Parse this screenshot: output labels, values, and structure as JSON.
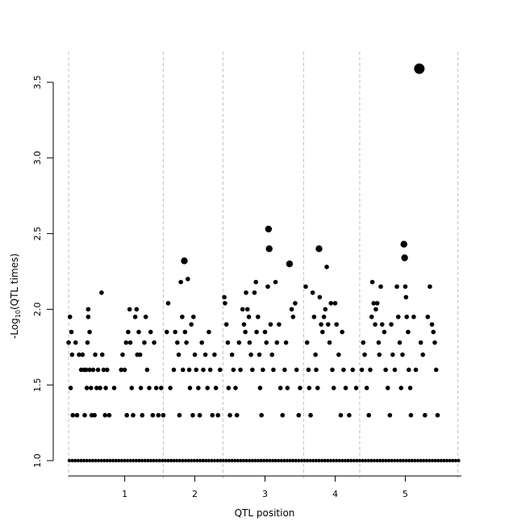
{
  "chart_data": {
    "type": "scatter",
    "title": "",
    "xlabel": "QTL position",
    "ylabel": "-Log10(QTL times)",
    "ylabel_parts": {
      "prefix": "-Log",
      "subscript": "10",
      "suffix": "(QTL times)"
    },
    "x_ticks": [
      {
        "label": "1",
        "value": 1
      },
      {
        "label": "2",
        "value": 2
      },
      {
        "label": "3",
        "value": 3
      },
      {
        "label": "4",
        "value": 4
      },
      {
        "label": "5",
        "value": 5
      }
    ],
    "y_ticks": [
      "1.0",
      "1.5",
      "2.0",
      "2.5",
      "3.0",
      "3.5"
    ],
    "ylim": [
      1.0,
      3.5
    ],
    "xlim": [
      0.2,
      5.8
    ],
    "chromosome_boundaries": [
      0.2,
      1.55,
      2.4,
      3.55,
      4.35,
      5.75
    ],
    "grid": false,
    "legend": "none",
    "point_color": "#000000",
    "baseline_points_y": 1.0,
    "points": [
      {
        "x": 0.2,
        "y": 1.78
      },
      {
        "x": 0.22,
        "y": 1.95
      },
      {
        "x": 0.24,
        "y": 1.85
      },
      {
        "x": 0.25,
        "y": 1.7
      },
      {
        "x": 0.23,
        "y": 1.48
      },
      {
        "x": 0.26,
        "y": 1.3
      },
      {
        "x": 0.3,
        "y": 1.78
      },
      {
        "x": 0.32,
        "y": 1.3
      },
      {
        "x": 0.35,
        "y": 1.7
      },
      {
        "x": 0.38,
        "y": 1.6
      },
      {
        "x": 0.4,
        "y": 1.7
      },
      {
        "x": 0.42,
        "y": 1.6
      },
      {
        "x": 0.43,
        "y": 1.3
      },
      {
        "x": 0.45,
        "y": 1.6
      },
      {
        "x": 0.46,
        "y": 1.48
      },
      {
        "x": 0.47,
        "y": 1.78
      },
      {
        "x": 0.48,
        "y": 2.0
      },
      {
        "x": 0.48,
        "y": 1.95
      },
      {
        "x": 0.5,
        "y": 1.85
      },
      {
        "x": 0.5,
        "y": 1.6
      },
      {
        "x": 0.52,
        "y": 1.48
      },
      {
        "x": 0.53,
        "y": 1.3
      },
      {
        "x": 0.55,
        "y": 1.6
      },
      {
        "x": 0.57,
        "y": 1.3
      },
      {
        "x": 0.58,
        "y": 1.7
      },
      {
        "x": 0.6,
        "y": 1.48
      },
      {
        "x": 0.62,
        "y": 1.6
      },
      {
        "x": 0.65,
        "y": 1.48
      },
      {
        "x": 0.67,
        "y": 2.11
      },
      {
        "x": 0.68,
        "y": 1.7
      },
      {
        "x": 0.7,
        "y": 1.6
      },
      {
        "x": 0.72,
        "y": 1.3
      },
      {
        "x": 0.73,
        "y": 1.48
      },
      {
        "x": 0.75,
        "y": 1.6
      },
      {
        "x": 0.78,
        "y": 1.3
      },
      {
        "x": 0.85,
        "y": 1.48
      },
      {
        "x": 0.95,
        "y": 1.6
      },
      {
        "x": 0.97,
        "y": 1.7
      },
      {
        "x": 1.0,
        "y": 1.6
      },
      {
        "x": 1.02,
        "y": 1.78
      },
      {
        "x": 1.03,
        "y": 1.3
      },
      {
        "x": 1.05,
        "y": 1.85
      },
      {
        "x": 1.07,
        "y": 2.0
      },
      {
        "x": 1.08,
        "y": 1.78
      },
      {
        "x": 1.1,
        "y": 1.48
      },
      {
        "x": 1.12,
        "y": 1.3
      },
      {
        "x": 1.15,
        "y": 1.95
      },
      {
        "x": 1.17,
        "y": 2.0
      },
      {
        "x": 1.18,
        "y": 1.7
      },
      {
        "x": 1.2,
        "y": 1.85
      },
      {
        "x": 1.22,
        "y": 1.7
      },
      {
        "x": 1.23,
        "y": 1.48
      },
      {
        "x": 1.25,
        "y": 1.3
      },
      {
        "x": 1.28,
        "y": 1.78
      },
      {
        "x": 1.3,
        "y": 1.95
      },
      {
        "x": 1.32,
        "y": 1.6
      },
      {
        "x": 1.35,
        "y": 1.48
      },
      {
        "x": 1.37,
        "y": 1.85
      },
      {
        "x": 1.4,
        "y": 1.3
      },
      {
        "x": 1.42,
        "y": 1.78
      },
      {
        "x": 1.45,
        "y": 1.48
      },
      {
        "x": 1.48,
        "y": 1.3
      },
      {
        "x": 1.52,
        "y": 1.48
      },
      {
        "x": 1.55,
        "y": 1.3
      },
      {
        "x": 1.6,
        "y": 1.85
      },
      {
        "x": 1.62,
        "y": 2.04
      },
      {
        "x": 1.65,
        "y": 1.48
      },
      {
        "x": 1.7,
        "y": 1.6
      },
      {
        "x": 1.72,
        "y": 1.85
      },
      {
        "x": 1.75,
        "y": 1.78
      },
      {
        "x": 1.77,
        "y": 1.7
      },
      {
        "x": 1.78,
        "y": 1.3
      },
      {
        "x": 1.8,
        "y": 2.18
      },
      {
        "x": 1.82,
        "y": 1.95
      },
      {
        "x": 1.83,
        "y": 1.6
      },
      {
        "x": 1.85,
        "y": 2.32
      },
      {
        "x": 1.86,
        "y": 1.85
      },
      {
        "x": 1.88,
        "y": 1.78
      },
      {
        "x": 1.9,
        "y": 2.2
      },
      {
        "x": 1.92,
        "y": 1.6
      },
      {
        "x": 1.93,
        "y": 1.48
      },
      {
        "x": 1.95,
        "y": 1.9
      },
      {
        "x": 1.97,
        "y": 1.3
      },
      {
        "x": 1.98,
        "y": 1.95
      },
      {
        "x": 2.0,
        "y": 1.7
      },
      {
        "x": 2.02,
        "y": 1.6
      },
      {
        "x": 2.05,
        "y": 1.48
      },
      {
        "x": 2.07,
        "y": 1.3
      },
      {
        "x": 2.1,
        "y": 1.78
      },
      {
        "x": 2.12,
        "y": 1.6
      },
      {
        "x": 2.15,
        "y": 1.7
      },
      {
        "x": 2.18,
        "y": 1.48
      },
      {
        "x": 2.2,
        "y": 1.85
      },
      {
        "x": 2.22,
        "y": 1.6
      },
      {
        "x": 2.25,
        "y": 1.3
      },
      {
        "x": 2.28,
        "y": 1.7
      },
      {
        "x": 2.3,
        "y": 1.48
      },
      {
        "x": 2.33,
        "y": 1.3
      },
      {
        "x": 2.36,
        "y": 1.6
      },
      {
        "x": 2.42,
        "y": 2.08
      },
      {
        "x": 2.43,
        "y": 2.04
      },
      {
        "x": 2.45,
        "y": 1.9
      },
      {
        "x": 2.47,
        "y": 1.78
      },
      {
        "x": 2.48,
        "y": 1.48
      },
      {
        "x": 2.5,
        "y": 1.3
      },
      {
        "x": 2.53,
        "y": 1.7
      },
      {
        "x": 2.55,
        "y": 1.6
      },
      {
        "x": 2.58,
        "y": 1.48
      },
      {
        "x": 2.6,
        "y": 1.3
      },
      {
        "x": 2.63,
        "y": 1.78
      },
      {
        "x": 2.65,
        "y": 1.6
      },
      {
        "x": 2.68,
        "y": 2.0
      },
      {
        "x": 2.7,
        "y": 1.9
      },
      {
        "x": 2.72,
        "y": 1.85
      },
      {
        "x": 2.73,
        "y": 2.11
      },
      {
        "x": 2.75,
        "y": 2.0
      },
      {
        "x": 2.77,
        "y": 1.95
      },
      {
        "x": 2.78,
        "y": 1.78
      },
      {
        "x": 2.8,
        "y": 1.7
      },
      {
        "x": 2.82,
        "y": 1.6
      },
      {
        "x": 2.85,
        "y": 2.11
      },
      {
        "x": 2.87,
        "y": 2.18
      },
      {
        "x": 2.88,
        "y": 1.85
      },
      {
        "x": 2.9,
        "y": 1.95
      },
      {
        "x": 2.92,
        "y": 1.7
      },
      {
        "x": 2.93,
        "y": 1.48
      },
      {
        "x": 2.95,
        "y": 1.3
      },
      {
        "x": 2.97,
        "y": 1.6
      },
      {
        "x": 3.0,
        "y": 1.85
      },
      {
        "x": 3.02,
        "y": 1.78
      },
      {
        "x": 3.04,
        "y": 2.15
      },
      {
        "x": 3.05,
        "y": 2.53
      },
      {
        "x": 3.06,
        "y": 2.4
      },
      {
        "x": 3.08,
        "y": 1.9
      },
      {
        "x": 3.1,
        "y": 1.7
      },
      {
        "x": 3.12,
        "y": 1.6
      },
      {
        "x": 3.15,
        "y": 2.18
      },
      {
        "x": 3.17,
        "y": 1.78
      },
      {
        "x": 3.2,
        "y": 1.9
      },
      {
        "x": 3.22,
        "y": 1.48
      },
      {
        "x": 3.25,
        "y": 1.3
      },
      {
        "x": 3.28,
        "y": 1.6
      },
      {
        "x": 3.3,
        "y": 1.78
      },
      {
        "x": 3.32,
        "y": 1.48
      },
      {
        "x": 3.35,
        "y": 2.3
      },
      {
        "x": 3.38,
        "y": 2.0
      },
      {
        "x": 3.4,
        "y": 1.95
      },
      {
        "x": 3.43,
        "y": 2.04
      },
      {
        "x": 3.45,
        "y": 1.6
      },
      {
        "x": 3.48,
        "y": 1.3
      },
      {
        "x": 3.5,
        "y": 1.48
      },
      {
        "x": 3.58,
        "y": 2.15
      },
      {
        "x": 3.6,
        "y": 1.78
      },
      {
        "x": 3.62,
        "y": 1.6
      },
      {
        "x": 3.63,
        "y": 1.48
      },
      {
        "x": 3.65,
        "y": 1.3
      },
      {
        "x": 3.68,
        "y": 2.11
      },
      {
        "x": 3.7,
        "y": 1.95
      },
      {
        "x": 3.72,
        "y": 1.7
      },
      {
        "x": 3.73,
        "y": 1.6
      },
      {
        "x": 3.75,
        "y": 1.48
      },
      {
        "x": 3.77,
        "y": 2.4
      },
      {
        "x": 3.78,
        "y": 2.08
      },
      {
        "x": 3.8,
        "y": 1.9
      },
      {
        "x": 3.82,
        "y": 1.85
      },
      {
        "x": 3.84,
        "y": 1.95
      },
      {
        "x": 3.86,
        "y": 2.0
      },
      {
        "x": 3.88,
        "y": 2.28
      },
      {
        "x": 3.9,
        "y": 1.9
      },
      {
        "x": 3.92,
        "y": 1.78
      },
      {
        "x": 3.94,
        "y": 2.04
      },
      {
        "x": 3.96,
        "y": 1.6
      },
      {
        "x": 3.98,
        "y": 1.48
      },
      {
        "x": 4.0,
        "y": 2.04
      },
      {
        "x": 4.02,
        "y": 1.9
      },
      {
        "x": 4.05,
        "y": 1.7
      },
      {
        "x": 4.08,
        "y": 1.3
      },
      {
        "x": 4.1,
        "y": 1.85
      },
      {
        "x": 4.12,
        "y": 1.6
      },
      {
        "x": 4.15,
        "y": 1.48
      },
      {
        "x": 4.2,
        "y": 1.3
      },
      {
        "x": 4.25,
        "y": 1.6
      },
      {
        "x": 4.3,
        "y": 1.48
      },
      {
        "x": 4.38,
        "y": 1.6
      },
      {
        "x": 4.4,
        "y": 1.78
      },
      {
        "x": 4.42,
        "y": 1.7
      },
      {
        "x": 4.45,
        "y": 1.48
      },
      {
        "x": 4.48,
        "y": 1.3
      },
      {
        "x": 4.5,
        "y": 1.6
      },
      {
        "x": 4.52,
        "y": 1.95
      },
      {
        "x": 4.53,
        "y": 2.18
      },
      {
        "x": 4.55,
        "y": 2.04
      },
      {
        "x": 4.57,
        "y": 1.9
      },
      {
        "x": 4.58,
        "y": 2.0
      },
      {
        "x": 4.6,
        "y": 2.04
      },
      {
        "x": 4.62,
        "y": 1.78
      },
      {
        "x": 4.63,
        "y": 1.7
      },
      {
        "x": 4.65,
        "y": 2.15
      },
      {
        "x": 4.67,
        "y": 1.9
      },
      {
        "x": 4.7,
        "y": 1.85
      },
      {
        "x": 4.72,
        "y": 1.6
      },
      {
        "x": 4.75,
        "y": 1.48
      },
      {
        "x": 4.78,
        "y": 1.3
      },
      {
        "x": 4.8,
        "y": 1.9
      },
      {
        "x": 4.82,
        "y": 1.7
      },
      {
        "x": 4.85,
        "y": 1.6
      },
      {
        "x": 4.88,
        "y": 2.15
      },
      {
        "x": 4.9,
        "y": 1.95
      },
      {
        "x": 4.92,
        "y": 1.78
      },
      {
        "x": 4.94,
        "y": 1.48
      },
      {
        "x": 4.96,
        "y": 1.7
      },
      {
        "x": 4.98,
        "y": 2.43
      },
      {
        "x": 4.99,
        "y": 2.34
      },
      {
        "x": 5.0,
        "y": 2.15
      },
      {
        "x": 5.01,
        "y": 2.08
      },
      {
        "x": 5.02,
        "y": 1.95
      },
      {
        "x": 5.04,
        "y": 1.85
      },
      {
        "x": 5.05,
        "y": 1.6
      },
      {
        "x": 5.07,
        "y": 1.48
      },
      {
        "x": 5.08,
        "y": 1.3
      },
      {
        "x": 5.12,
        "y": 1.95
      },
      {
        "x": 5.15,
        "y": 1.6
      },
      {
        "x": 5.2,
        "y": 3.59
      },
      {
        "x": 5.22,
        "y": 1.78
      },
      {
        "x": 5.25,
        "y": 1.7
      },
      {
        "x": 5.28,
        "y": 1.3
      },
      {
        "x": 5.32,
        "y": 1.95
      },
      {
        "x": 5.35,
        "y": 2.15
      },
      {
        "x": 5.38,
        "y": 1.9
      },
      {
        "x": 5.4,
        "y": 1.85
      },
      {
        "x": 5.42,
        "y": 1.78
      },
      {
        "x": 5.44,
        "y": 1.6
      },
      {
        "x": 5.46,
        "y": 1.3
      }
    ]
  }
}
